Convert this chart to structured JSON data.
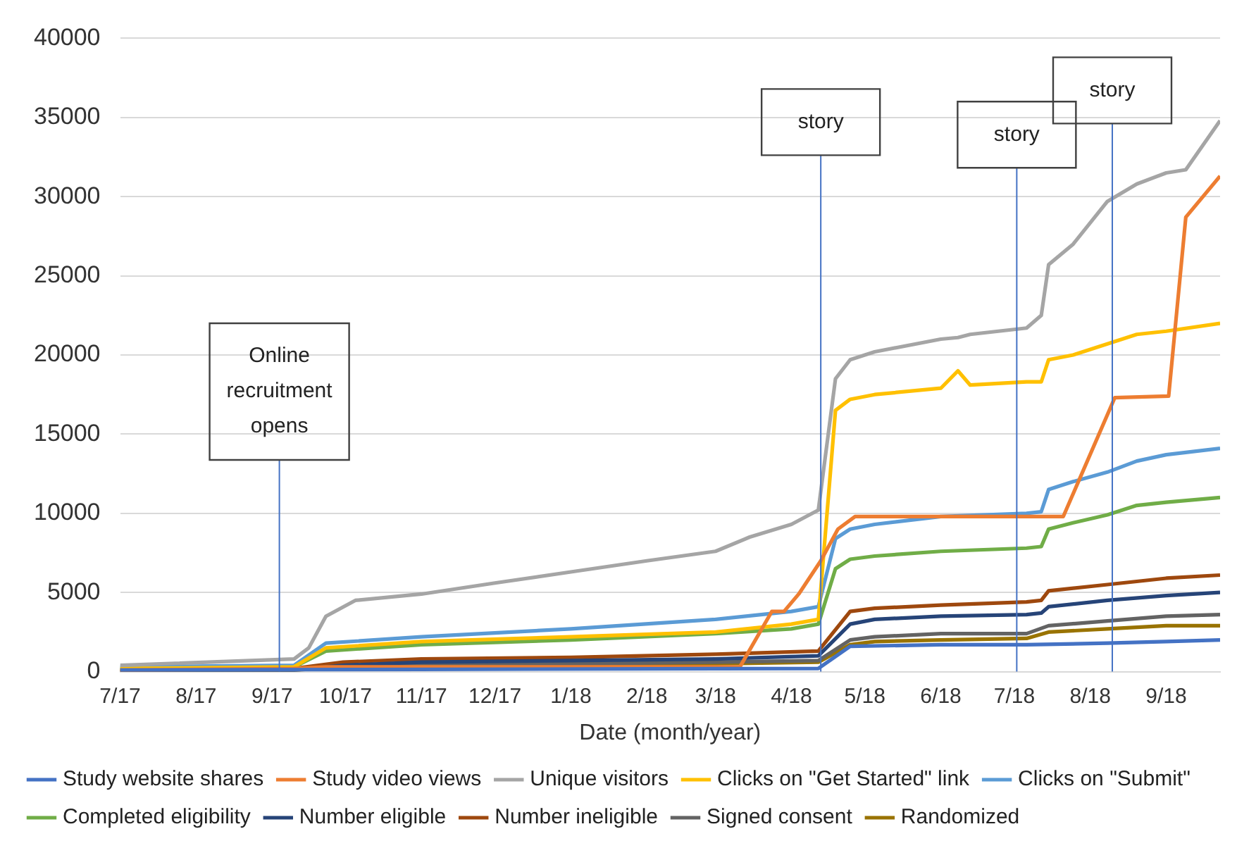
{
  "chart_data": {
    "type": "line",
    "xlabel": "Date (month/year)",
    "xlim": [
      "2017-07-01",
      "2018-09-23"
    ],
    "xticks": [
      {
        "value": "2017-07-01",
        "label": "7/17"
      },
      {
        "value": "2017-08-01",
        "label": "8/17"
      },
      {
        "value": "2017-09-01",
        "label": "9/17"
      },
      {
        "value": "2017-10-01",
        "label": "10/17"
      },
      {
        "value": "2017-11-01",
        "label": "11/17"
      },
      {
        "value": "2017-12-01",
        "label": "12/17"
      },
      {
        "value": "2018-01-01",
        "label": "1/18"
      },
      {
        "value": "2018-02-01",
        "label": "2/18"
      },
      {
        "value": "2018-03-01",
        "label": "3/18"
      },
      {
        "value": "2018-04-01",
        "label": "4/18"
      },
      {
        "value": "2018-05-01",
        "label": "5/18"
      },
      {
        "value": "2018-06-01",
        "label": "6/18"
      },
      {
        "value": "2018-07-01",
        "label": "7/18"
      },
      {
        "value": "2018-08-01",
        "label": "8/18"
      },
      {
        "value": "2018-09-01",
        "label": "9/18"
      }
    ],
    "ylim": [
      0,
      40000
    ],
    "yticks": [
      0,
      5000,
      10000,
      15000,
      20000,
      25000,
      30000,
      35000,
      40000
    ],
    "grid": "y",
    "legend": "bottom",
    "marker": "none",
    "line_style": "solid",
    "ref_lines": [
      {
        "axis": "x",
        "value": "2017-09-04",
        "label": "Online recruitment opens",
        "color": "#4472c4"
      },
      {
        "axis": "x",
        "value": "2018-04-13",
        "label": "story",
        "color": "#4472c4"
      },
      {
        "axis": "x",
        "value": "2018-07-02",
        "label": "story",
        "color": "#4472c4"
      },
      {
        "axis": "x",
        "value": "2018-08-10",
        "label": "story",
        "color": "#4472c4"
      }
    ],
    "series": [
      {
        "name": "Study website shares",
        "color": "#4472c4",
        "x": [
          "2017-07-01",
          "2018-04-12",
          "2018-04-25",
          "2018-06-01",
          "2018-07-06",
          "2018-08-08",
          "2018-09-01",
          "2018-09-23"
        ],
        "values": [
          100,
          200,
          1600,
          1700,
          1700,
          1800,
          1900,
          2000
        ]
      },
      {
        "name": "Study video views",
        "color": "#ed7d31",
        "x": [
          "2017-07-01",
          "2017-09-10",
          "2017-09-23",
          "2018-03-11",
          "2018-03-24",
          "2018-03-29",
          "2018-04-04",
          "2018-04-13",
          "2018-04-20",
          "2018-04-27",
          "2018-07-21",
          "2018-08-11",
          "2018-09-02",
          "2018-09-09",
          "2018-09-23"
        ],
        "values": [
          100,
          200,
          300,
          300,
          3800,
          3800,
          4900,
          7000,
          9000,
          9800,
          9800,
          17300,
          17400,
          28700,
          31300
        ]
      },
      {
        "name": "Unique visitors",
        "color": "#a5a5a5",
        "x": [
          "2017-07-01",
          "2017-09-10",
          "2017-09-16",
          "2017-09-23",
          "2017-10-05",
          "2017-11-01",
          "2017-12-01",
          "2018-01-01",
          "2018-02-01",
          "2018-03-01",
          "2018-03-15",
          "2018-04-01",
          "2018-04-12",
          "2018-04-19",
          "2018-04-25",
          "2018-05-05",
          "2018-06-01",
          "2018-06-08",
          "2018-06-13",
          "2018-07-06",
          "2018-07-12",
          "2018-07-15",
          "2018-07-25",
          "2018-08-08",
          "2018-08-20",
          "2018-09-01",
          "2018-09-09",
          "2018-09-23"
        ],
        "values": [
          400,
          800,
          1500,
          3500,
          4500,
          4900,
          5600,
          6300,
          7000,
          7600,
          8500,
          9300,
          10200,
          18500,
          19700,
          20200,
          21000,
          21100,
          21300,
          21700,
          22500,
          25700,
          27000,
          29700,
          30800,
          31500,
          31700,
          34800
        ]
      },
      {
        "name": "Clicks on \"Get Started\" link",
        "color": "#ffc000",
        "x": [
          "2017-07-01",
          "2017-09-10",
          "2017-09-23",
          "2017-11-01",
          "2018-01-01",
          "2018-03-01",
          "2018-04-01",
          "2018-04-12",
          "2018-04-19",
          "2018-04-25",
          "2018-05-05",
          "2018-06-01",
          "2018-06-08",
          "2018-06-13",
          "2018-07-06",
          "2018-07-12",
          "2018-07-15",
          "2018-07-25",
          "2018-08-08",
          "2018-08-20",
          "2018-09-01",
          "2018-09-23"
        ],
        "values": [
          200,
          300,
          1500,
          1900,
          2200,
          2500,
          3000,
          3300,
          16500,
          17200,
          17500,
          17900,
          19000,
          18100,
          18300,
          18300,
          19700,
          20000,
          20700,
          21300,
          21500,
          22000
        ]
      },
      {
        "name": "Clicks on \"Submit\"",
        "color": "#5b9bd5",
        "x": [
          "2017-07-01",
          "2017-09-10",
          "2017-09-23",
          "2017-11-01",
          "2018-01-01",
          "2018-03-01",
          "2018-04-01",
          "2018-04-12",
          "2018-04-19",
          "2018-04-25",
          "2018-05-05",
          "2018-06-01",
          "2018-07-06",
          "2018-07-12",
          "2018-07-15",
          "2018-07-25",
          "2018-08-08",
          "2018-08-20",
          "2018-09-01",
          "2018-09-23"
        ],
        "values": [
          300,
          400,
          1800,
          2200,
          2700,
          3300,
          3800,
          4100,
          8400,
          9000,
          9300,
          9800,
          10000,
          10100,
          11500,
          12000,
          12600,
          13300,
          13700,
          14100
        ]
      },
      {
        "name": "Completed eligibility",
        "color": "#70ad47",
        "x": [
          "2017-07-01",
          "2017-09-10",
          "2017-09-23",
          "2017-11-01",
          "2018-01-01",
          "2018-03-01",
          "2018-04-01",
          "2018-04-12",
          "2018-04-19",
          "2018-04-25",
          "2018-05-05",
          "2018-06-01",
          "2018-07-06",
          "2018-07-12",
          "2018-07-15",
          "2018-07-25",
          "2018-08-08",
          "2018-08-20",
          "2018-09-01",
          "2018-09-23"
        ],
        "values": [
          200,
          300,
          1300,
          1700,
          2000,
          2400,
          2700,
          3000,
          6500,
          7100,
          7300,
          7600,
          7800,
          7900,
          9000,
          9400,
          9900,
          10500,
          10700,
          11000
        ]
      },
      {
        "name": "Number eligible",
        "color": "#264478",
        "x": [
          "2017-07-01",
          "2017-09-10",
          "2017-09-30",
          "2017-11-01",
          "2018-01-01",
          "2018-03-01",
          "2018-04-12",
          "2018-04-25",
          "2018-05-05",
          "2018-06-01",
          "2018-07-06",
          "2018-07-12",
          "2018-07-15",
          "2018-08-08",
          "2018-09-01",
          "2018-09-23"
        ],
        "values": [
          100,
          100,
          400,
          600,
          700,
          800,
          1000,
          3000,
          3300,
          3500,
          3600,
          3700,
          4100,
          4500,
          4800,
          5000
        ]
      },
      {
        "name": "Number ineligible",
        "color": "#9e480e",
        "x": [
          "2017-07-01",
          "2017-09-10",
          "2017-09-30",
          "2017-11-01",
          "2018-01-01",
          "2018-03-01",
          "2018-04-12",
          "2018-04-25",
          "2018-05-05",
          "2018-06-01",
          "2018-07-06",
          "2018-07-12",
          "2018-07-15",
          "2018-08-08",
          "2018-09-01",
          "2018-09-23"
        ],
        "values": [
          100,
          200,
          600,
          800,
          900,
          1100,
          1300,
          3800,
          4000,
          4200,
          4400,
          4500,
          5100,
          5500,
          5900,
          6100
        ]
      },
      {
        "name": "Signed consent",
        "color": "#636363",
        "x": [
          "2017-07-01",
          "2017-09-10",
          "2017-09-30",
          "2017-11-01",
          "2018-01-01",
          "2018-03-01",
          "2018-04-12",
          "2018-04-25",
          "2018-05-05",
          "2018-06-01",
          "2018-07-06",
          "2018-07-15",
          "2018-08-08",
          "2018-09-01",
          "2018-09-23"
        ],
        "values": [
          0,
          100,
          300,
          400,
          500,
          600,
          700,
          2000,
          2200,
          2400,
          2400,
          2900,
          3200,
          3500,
          3600
        ]
      },
      {
        "name": "Randomized",
        "color": "#997300",
        "x": [
          "2017-07-01",
          "2017-09-10",
          "2017-09-30",
          "2017-11-01",
          "2018-01-01",
          "2018-03-01",
          "2018-04-12",
          "2018-04-25",
          "2018-05-05",
          "2018-06-01",
          "2018-07-06",
          "2018-07-15",
          "2018-08-08",
          "2018-09-01",
          "2018-09-23"
        ],
        "values": [
          0,
          100,
          300,
          400,
          400,
          500,
          600,
          1700,
          1900,
          2000,
          2100,
          2500,
          2700,
          2900,
          2900
        ]
      }
    ]
  }
}
